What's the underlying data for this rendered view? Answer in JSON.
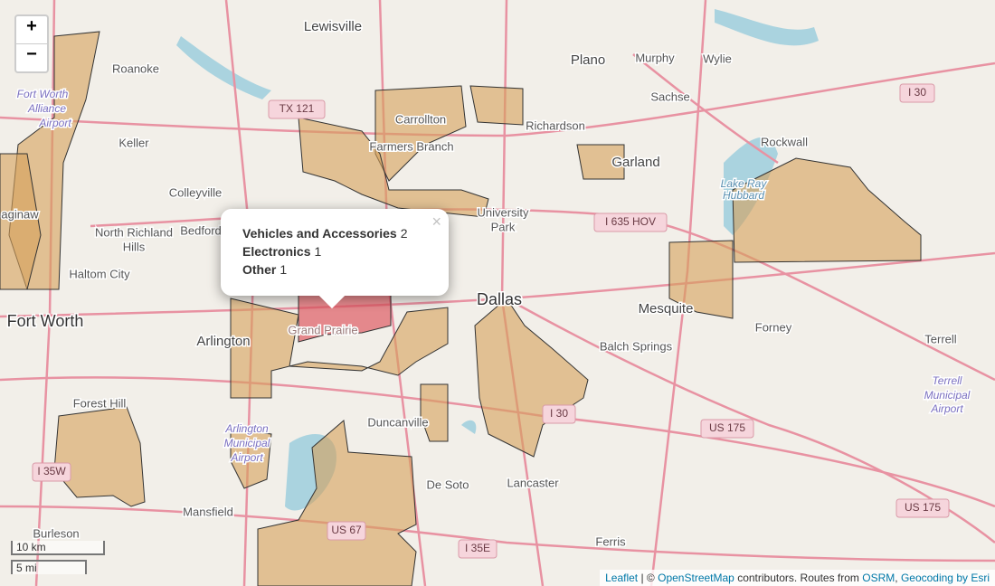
{
  "map": {
    "places": [
      "Lewisville",
      "Plano",
      "Murphy",
      "Wylie",
      "Roanoke",
      "Sachse",
      "Fort Worth",
      "Alliance",
      "Airport",
      "Carrollton",
      "Richardson",
      "Keller",
      "Farmers Branch",
      "Rockwall",
      "Garland",
      "Colleyville",
      "Lake Ray",
      "Hubbard",
      "University",
      "Park",
      "aginaw",
      "North Richland",
      "Hills",
      "Bedford",
      "Haltom City",
      "Dallas",
      "Mesquite",
      "Fort Worth",
      "Forney",
      "Arlington",
      "Grand Prairie",
      "Terrell",
      "Balch Springs",
      "Terrell",
      "Municipal",
      "Airport",
      "Forest Hill",
      "Duncanville",
      "Arlington",
      "Municipal",
      "Airport",
      "De Soto",
      "Lancaster",
      "Mansfield",
      "Burleson",
      "Ferris"
    ],
    "shields": [
      "TX 121",
      "I 635 HOV",
      "I 30",
      "I 30",
      "US 175",
      "US 175",
      "I 35W",
      "US 67",
      "I 35E"
    ]
  },
  "popup": {
    "close": "×",
    "rows": [
      {
        "label": "Vehicles and Accessories",
        "count": 2
      },
      {
        "label": "Electronics",
        "count": 1
      },
      {
        "label": "Other",
        "count": 1
      }
    ]
  },
  "controls": {
    "zoom_in": "+",
    "zoom_out": "−",
    "scale_km": "10 km",
    "scale_mi": "5 mi"
  },
  "attribution": {
    "leaflet": "Leaflet",
    "sep": "| ©",
    "osm": "OpenStreetMap",
    "routes": "contributors. Routes from",
    "osrm": "OSRM",
    "comma": ",",
    "esri": "Geocoding by Esri"
  }
}
